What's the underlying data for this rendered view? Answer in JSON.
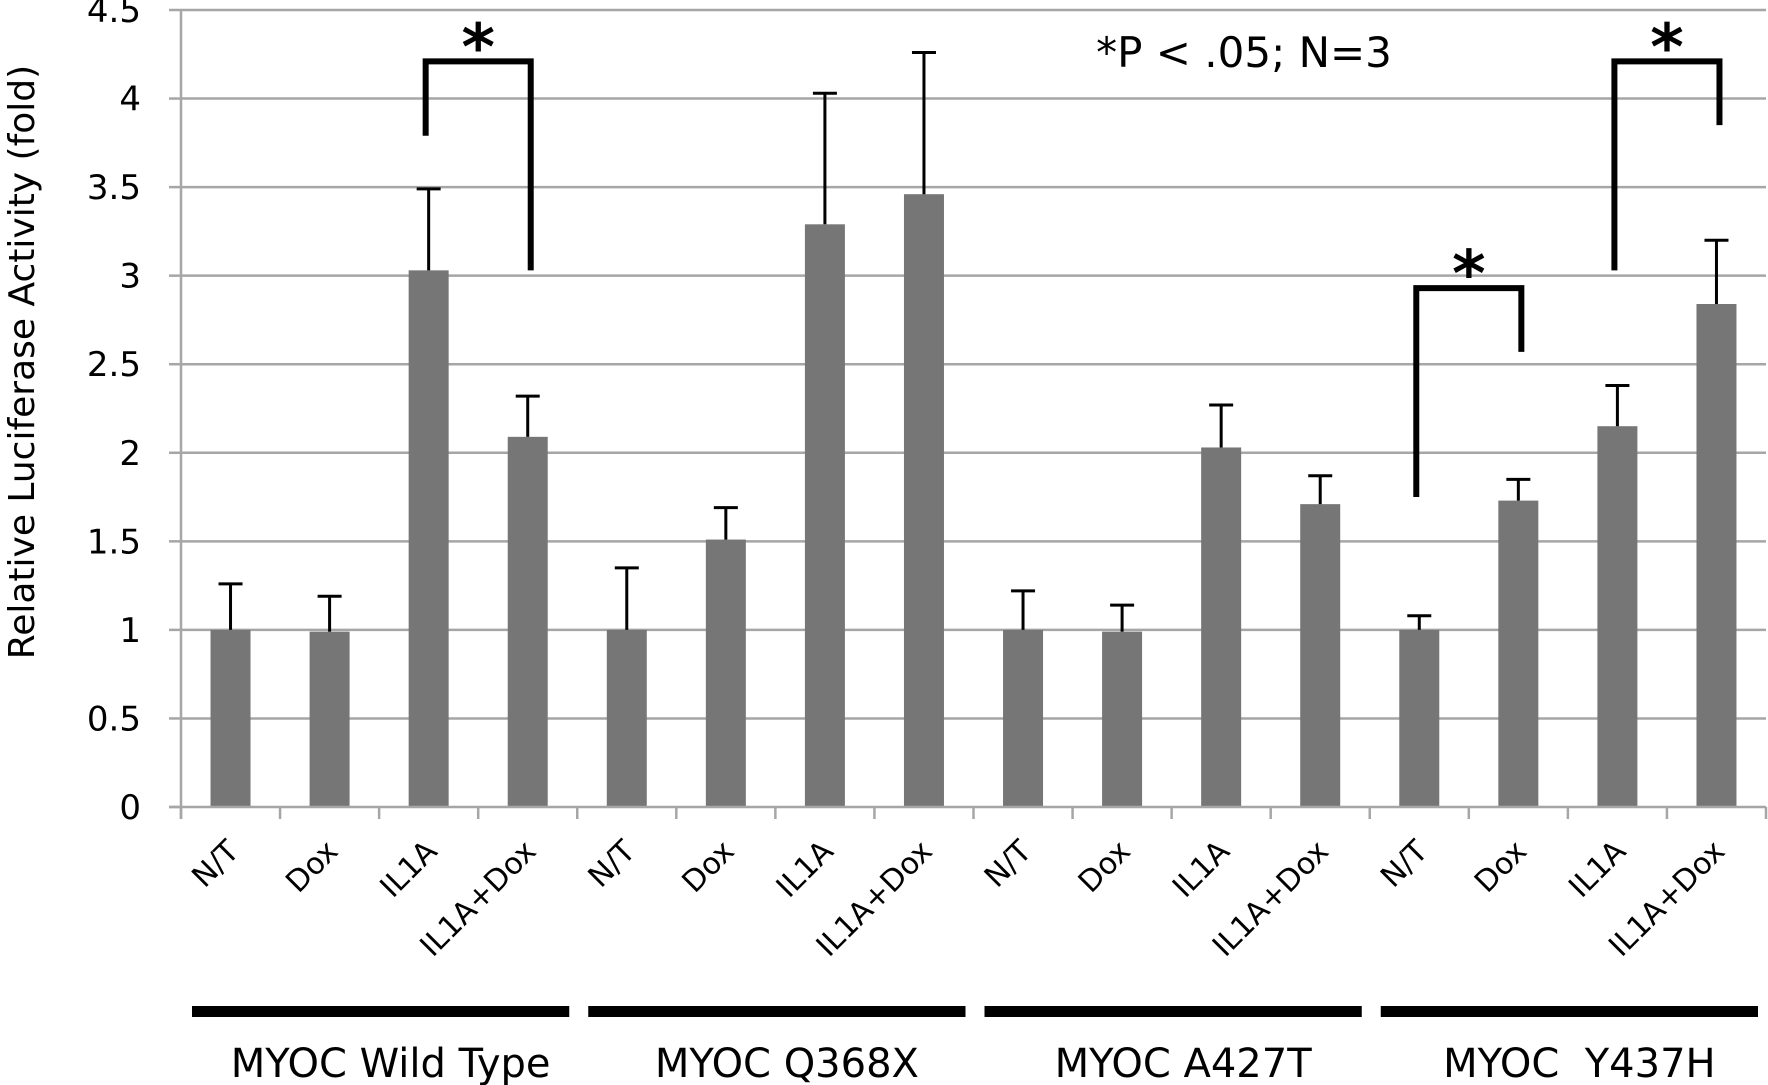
{
  "chart_data": {
    "type": "bar",
    "title": "",
    "xlabel": "",
    "ylabel": "Relative Luciferase Activity (fold)",
    "ylim": [
      0,
      4.5
    ],
    "yticks": [
      0,
      0.5,
      1,
      1.5,
      2,
      2.5,
      3,
      3.5,
      4,
      4.5
    ],
    "ytick_labels": [
      "0",
      "0.5",
      "1",
      "1.5",
      "2",
      "2.5",
      "3",
      "3.5",
      "4",
      "4.5"
    ],
    "grid": "horizontal",
    "bar_color": "#767676",
    "grid_color": "#a6a6a6",
    "errorbar_color": "#000000",
    "annotation": "*P < .05; N=3",
    "groups": [
      {
        "label": "MYOC Wild Type",
        "categories": [
          "N/T",
          "Dox",
          "IL1A",
          "IL1A+Dox"
        ],
        "values": [
          1.0,
          0.99,
          3.03,
          2.09
        ],
        "error_upper": [
          1.26,
          1.19,
          3.49,
          2.32
        ]
      },
      {
        "label": "MYOC Q368X",
        "categories": [
          "N/T",
          "Dox",
          "IL1A",
          "IL1A+Dox"
        ],
        "values": [
          1.0,
          1.51,
          3.29,
          3.46
        ],
        "error_upper": [
          1.35,
          1.69,
          4.03,
          4.26
        ]
      },
      {
        "label": "MYOC A427T",
        "categories": [
          "N/T",
          "Dox",
          "IL1A",
          "IL1A+Dox"
        ],
        "values": [
          1.0,
          0.99,
          2.03,
          1.71
        ],
        "error_upper": [
          1.22,
          1.14,
          2.27,
          1.87
        ]
      },
      {
        "label": "MYOC  Y437H",
        "categories": [
          "N/T",
          "Dox",
          "IL1A",
          "IL1A+Dox"
        ],
        "values": [
          1.0,
          1.73,
          2.15,
          2.84
        ],
        "error_upper": [
          1.08,
          1.85,
          2.38,
          3.2
        ]
      }
    ],
    "significance_brackets": [
      {
        "group": 0,
        "from": 2,
        "to": 3,
        "level": 4.21,
        "left_bottom": 3.79,
        "right_bottom": 3.03,
        "label": "*"
      },
      {
        "group": 3,
        "from": 0,
        "to": 1,
        "level": 2.93,
        "left_bottom": 1.75,
        "right_bottom": 2.57,
        "label": "*"
      },
      {
        "group": 3,
        "from": 2,
        "to": 3,
        "level": 4.21,
        "left_bottom": 3.03,
        "right_bottom": 3.85,
        "label": "*"
      }
    ]
  }
}
